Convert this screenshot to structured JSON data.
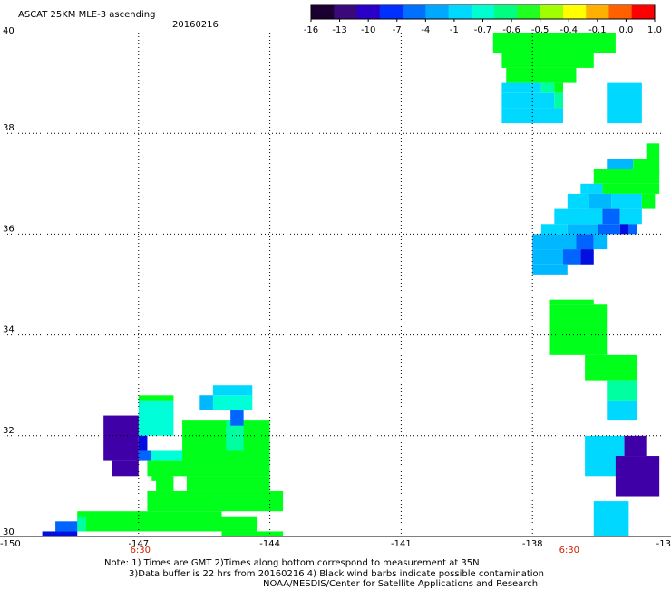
{
  "header": {
    "title": "ASCAT 25KM MLE-3 ascending",
    "date": "20160216"
  },
  "colorbar": {
    "ticks": [
      "-16",
      "-13",
      "-10",
      "-7",
      "-4",
      "-1",
      "-0.7",
      "-0.6",
      "-0.5",
      "-0.4",
      "-0.1",
      "0.0",
      "1.0"
    ],
    "colors": [
      "#1a0030",
      "#3a0a7a",
      "#2a00c8",
      "#0030ff",
      "#0070ff",
      "#00a8ff",
      "#00d8ff",
      "#00ffd0",
      "#00ff80",
      "#20ff20",
      "#a0ff00",
      "#ffff00",
      "#ffb000",
      "#ff6000",
      "#ff0000"
    ]
  },
  "map": {
    "lon_labels": [
      "-150",
      "-147",
      "-144",
      "-141",
      "-138",
      "-13"
    ],
    "lat_labels": [
      "40",
      "38",
      "36",
      "34",
      "32",
      "30"
    ],
    "time_labels": [
      "6:30",
      "6:30"
    ],
    "lon_range": [
      -150,
      -135
    ],
    "lat_range": [
      30,
      40
    ],
    "color_key": {
      "G": "#00ff1a",
      "C": "#00ffa0",
      "T": "#00ffd8",
      "S": "#00d8ff",
      "L": "#00b8ff",
      "B": "#0064ff",
      "N": "#0010e0",
      "P": "#4000a8"
    },
    "cells": [
      [
        -138.9,
        40.0,
        -136.1,
        39.6,
        "G"
      ],
      [
        -138.7,
        39.6,
        -137.3,
        39.3,
        "G"
      ],
      [
        -137.3,
        39.6,
        -136.6,
        39.3,
        "G"
      ],
      [
        -138.6,
        39.3,
        -137.6,
        39.0,
        "G"
      ],
      [
        -137.6,
        39.3,
        -137.0,
        39.0,
        "G"
      ],
      [
        -138.7,
        39.0,
        -137.8,
        38.8,
        "S"
      ],
      [
        -137.8,
        39.0,
        -137.5,
        38.8,
        "C"
      ],
      [
        -137.5,
        39.0,
        -137.3,
        38.8,
        "G"
      ],
      [
        -138.7,
        38.8,
        -137.5,
        38.5,
        "S"
      ],
      [
        -137.5,
        38.8,
        -137.3,
        38.5,
        "C"
      ],
      [
        -138.7,
        38.5,
        -137.3,
        38.2,
        "S"
      ],
      [
        -136.3,
        39.0,
        -135.5,
        38.2,
        "S"
      ],
      [
        -135.4,
        37.8,
        -135.1,
        37.2,
        "G"
      ],
      [
        -136.3,
        37.5,
        -135.7,
        37.3,
        "L"
      ],
      [
        -135.7,
        37.5,
        -135.2,
        37.3,
        "G"
      ],
      [
        -136.6,
        37.3,
        -135.1,
        37.0,
        "G"
      ],
      [
        -136.9,
        37.0,
        -136.4,
        36.8,
        "S"
      ],
      [
        -136.4,
        37.0,
        -135.1,
        36.8,
        "G"
      ],
      [
        -137.2,
        36.8,
        -136.7,
        36.5,
        "S"
      ],
      [
        -136.7,
        36.8,
        -136.2,
        36.5,
        "L"
      ],
      [
        -136.2,
        36.8,
        -135.5,
        36.5,
        "S"
      ],
      [
        -135.5,
        36.8,
        -135.2,
        36.5,
        "G"
      ],
      [
        -137.5,
        36.5,
        -136.4,
        36.2,
        "S"
      ],
      [
        -136.4,
        36.5,
        -136.0,
        36.2,
        "B"
      ],
      [
        -136.0,
        36.5,
        -135.5,
        36.2,
        "S"
      ],
      [
        -137.8,
        36.2,
        -137.2,
        36.0,
        "S"
      ],
      [
        -137.2,
        36.2,
        -136.5,
        36.0,
        "L"
      ],
      [
        -136.5,
        36.2,
        -136.0,
        36.0,
        "B"
      ],
      [
        -136.0,
        36.2,
        -135.8,
        36.0,
        "N"
      ],
      [
        -135.8,
        36.2,
        -135.6,
        36.0,
        "B"
      ],
      [
        -138.0,
        36.0,
        -137.0,
        35.7,
        "L"
      ],
      [
        -137.0,
        36.0,
        -136.6,
        35.7,
        "B"
      ],
      [
        -136.6,
        36.0,
        -136.3,
        35.7,
        "L"
      ],
      [
        -138.0,
        35.7,
        -137.3,
        35.4,
        "L"
      ],
      [
        -137.3,
        35.7,
        -136.9,
        35.4,
        "B"
      ],
      [
        -136.9,
        35.7,
        -136.6,
        35.4,
        "N"
      ],
      [
        -138.0,
        35.4,
        -137.2,
        35.2,
        "L"
      ],
      [
        -137.6,
        34.7,
        -136.6,
        34.6,
        "G"
      ],
      [
        -137.6,
        34.6,
        -136.3,
        33.6,
        "G"
      ],
      [
        -136.8,
        33.6,
        -135.6,
        33.1,
        "G"
      ],
      [
        -136.3,
        33.1,
        -135.6,
        32.7,
        "C"
      ],
      [
        -136.3,
        32.7,
        -135.6,
        32.3,
        "S"
      ],
      [
        -136.8,
        32.0,
        -135.9,
        31.2,
        "S"
      ],
      [
        -135.9,
        32.0,
        -135.4,
        31.6,
        "P"
      ],
      [
        -136.1,
        31.6,
        -135.1,
        30.8,
        "P"
      ],
      [
        -136.6,
        30.7,
        -135.8,
        30.0,
        "S"
      ],
      [
        -147.0,
        32.8,
        -146.2,
        32.7,
        "G"
      ],
      [
        -147.0,
        32.7,
        -146.2,
        32.0,
        "T"
      ],
      [
        -147.8,
        32.4,
        -147.0,
        31.5,
        "P"
      ],
      [
        -147.6,
        31.5,
        -147.0,
        31.2,
        "P"
      ],
      [
        -147.0,
        32.0,
        -146.8,
        31.7,
        "N"
      ],
      [
        -147.0,
        31.7,
        -146.7,
        31.5,
        "B"
      ],
      [
        -146.7,
        31.7,
        -146.0,
        31.5,
        "T"
      ],
      [
        -146.0,
        32.3,
        -144.0,
        31.2,
        "G"
      ],
      [
        -145.0,
        32.3,
        -144.6,
        31.7,
        "C"
      ],
      [
        -145.6,
        32.8,
        -144.4,
        32.5,
        "T"
      ],
      [
        -145.3,
        33.0,
        -144.4,
        32.8,
        "S"
      ],
      [
        -145.6,
        32.8,
        -145.3,
        32.5,
        "L"
      ],
      [
        -144.9,
        32.5,
        -144.6,
        32.2,
        "B"
      ],
      [
        -146.8,
        31.5,
        -144.1,
        31.2,
        "G"
      ],
      [
        -146.6,
        31.2,
        -146.2,
        30.9,
        "G"
      ],
      [
        -145.9,
        31.2,
        -144.0,
        30.9,
        "G"
      ],
      [
        -146.8,
        30.9,
        -143.7,
        30.5,
        "G"
      ],
      [
        -148.4,
        30.5,
        -145.1,
        30.1,
        "G"
      ],
      [
        -145.1,
        30.4,
        -144.3,
        30.1,
        "G"
      ],
      [
        -148.4,
        30.4,
        -148.2,
        30.1,
        "C"
      ],
      [
        -148.9,
        30.3,
        -148.4,
        30.1,
        "B"
      ],
      [
        -149.2,
        30.1,
        -148.4,
        30.0,
        "N"
      ],
      [
        -145.1,
        30.1,
        -143.7,
        30.0,
        "G"
      ],
      [
        -146.7,
        31.3,
        -146.3,
        31.1,
        "G"
      ]
    ]
  },
  "footer": {
    "note_line1": "Note: 1) Times are GMT 2)Times along bottom correspond to measurement at 35N",
    "note_line2": "3)Data buffer is 22 hrs from 20160216 4) Black wind barbs indicate possible contamination",
    "credit": "NOAA/NESDIS/Center for Satellite Applications and Research"
  }
}
